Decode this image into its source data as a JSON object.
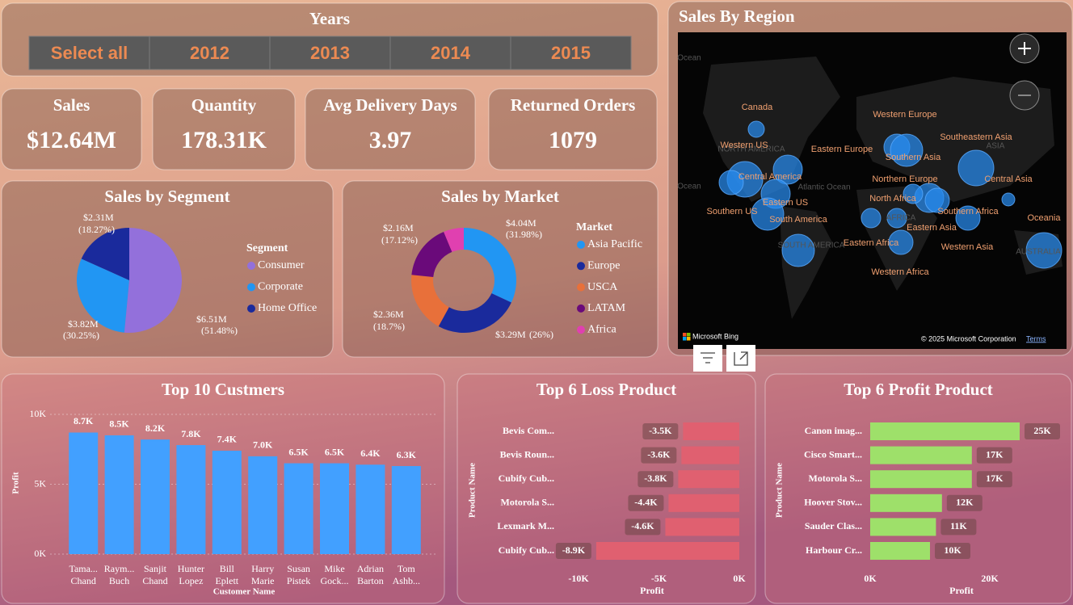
{
  "slicer": {
    "title": "Years",
    "options": [
      "Select all",
      "2012",
      "2013",
      "2014",
      "2015"
    ]
  },
  "cards": [
    {
      "label": "Sales",
      "value": "$12.64M"
    },
    {
      "label": "Quantity",
      "value": "178.31K"
    },
    {
      "label": "Avg Delivery Days",
      "value": "3.97"
    },
    {
      "label": "Returned Orders",
      "value": "1079"
    }
  ],
  "map": {
    "title": "Sales By Region",
    "regions": [
      "Canada",
      "Western Europe",
      "Southeastern Asia",
      "Western US",
      "Eastern Europe",
      "Southern Asia",
      "Central America",
      "Northern Europe",
      "Central Asia",
      "Eastern US",
      "North Africa",
      "Southern US",
      "Southern Africa",
      "South America",
      "Oceania",
      "Eastern Asia",
      "Eastern Africa",
      "Western Asia",
      "Western Africa"
    ],
    "base_labels": [
      "Ocean",
      "Ocean",
      "NORTH AMERICA",
      "Atlantic Ocean",
      "ASIA",
      "AFRICA",
      "SOUTH AMERICA",
      "AUSTRALIA"
    ],
    "attribution": "Microsoft Bing",
    "copyright": "© 2025 Microsoft Corporation",
    "terms": "Terms"
  },
  "chart_data": [
    {
      "type": "pie",
      "title": "Sales by Segment",
      "legend_title": "Segment",
      "categories": [
        "Consumer",
        "Corporate",
        "Home Office"
      ],
      "values": [
        6510000,
        3820000,
        2310000
      ],
      "value_labels": [
        "$6.51M",
        "$3.82M",
        "$2.31M"
      ],
      "percentages": [
        51.48,
        30.25,
        18.27
      ],
      "percentage_labels": [
        "(51.48%)",
        "(30.25%)",
        "(18.27%)"
      ],
      "colors": [
        "#9370db",
        "#2196f3",
        "#1a2a9c"
      ]
    },
    {
      "type": "donut",
      "title": "Sales by Market",
      "legend_title": "Market",
      "categories": [
        "Asia Pacific",
        "Europe",
        "USCA",
        "LATAM",
        "Africa"
      ],
      "values": [
        4040000,
        3290000,
        2360000,
        2160000,
        790000
      ],
      "value_labels": [
        "$4.04M",
        "$3.29M",
        "$2.36M",
        "$2.16M",
        null
      ],
      "percentages": [
        31.98,
        26,
        18.7,
        17.12,
        6.2
      ],
      "percentage_labels": [
        "(31.98%)",
        "(26%)",
        "(18.7%)",
        "(17.12%)",
        null
      ],
      "colors": [
        "#2196f3",
        "#1a2a9c",
        "#e8703a",
        "#6a0a7a",
        "#e040b0"
      ]
    },
    {
      "type": "bar",
      "title": "Top 10 Custmers",
      "x_label": "Customer Name",
      "y_label": "Profit",
      "categories": [
        [
          "Tama...",
          "Chand"
        ],
        [
          "Raym...",
          "Buch"
        ],
        [
          "Sanjit",
          "Chand"
        ],
        [
          "Hunter",
          "Lopez"
        ],
        [
          "Bill",
          "Eplett"
        ],
        [
          "Harry",
          "Marie"
        ],
        [
          "Susan",
          "Pistek"
        ],
        [
          "Mike",
          "Gock..."
        ],
        [
          "Adrian",
          "Barton"
        ],
        [
          "Tom",
          "Ashb..."
        ]
      ],
      "values": [
        8700,
        8500,
        8200,
        7800,
        7400,
        7000,
        6500,
        6500,
        6400,
        6300
      ],
      "value_labels": [
        "8.7K",
        "8.5K",
        "8.2K",
        "7.8K",
        "7.4K",
        "7.0K",
        "6.5K",
        "6.5K",
        "6.4K",
        "6.3K"
      ],
      "color": "#42a0ff",
      "ylim": [
        0,
        10000
      ],
      "yticks": [
        {
          "value": 0,
          "label": "0K"
        },
        {
          "value": 5000,
          "label": "5K"
        },
        {
          "value": 10000,
          "label": "10K"
        }
      ],
      "grid": true
    },
    {
      "type": "hbar",
      "title": "Top 6 Loss Product",
      "x_label": "Profit",
      "y_label": "Product Name",
      "categories": [
        "Bevis Com...",
        "Bevis Roun...",
        "Cubify Cub...",
        "Motorola S...",
        "Lexmark M...",
        "Cubify Cub..."
      ],
      "values": [
        -3500,
        -3600,
        -3800,
        -4400,
        -4600,
        -8900
      ],
      "value_labels": [
        "-3.5K",
        "-3.6K",
        "-3.8K",
        "-4.4K",
        "-4.6K",
        "-8.9K"
      ],
      "color": "#e06070",
      "xlim": [
        -10000,
        0
      ],
      "xticks": [
        {
          "value": -10000,
          "label": "-10K"
        },
        {
          "value": -5000,
          "label": "-5K"
        },
        {
          "value": 0,
          "label": "0K"
        }
      ],
      "grid": false
    },
    {
      "type": "hbar",
      "title": "Top 6 Profit Product",
      "x_label": "Profit",
      "y_label": "Product Name",
      "categories": [
        "Canon imag...",
        "Cisco Smart...",
        "Motorola S...",
        "Hoover Stov...",
        "Sauder Clas...",
        "Harbour Cr..."
      ],
      "values": [
        25000,
        17000,
        17000,
        12000,
        11000,
        10000
      ],
      "value_labels": [
        "25K",
        "17K",
        "17K",
        "12K",
        "11K",
        "10K"
      ],
      "color": "#9ee06a",
      "xlim": [
        0,
        25000
      ],
      "xticks": [
        {
          "value": 0,
          "label": "0K"
        },
        {
          "value": 20000,
          "label": "20K"
        }
      ],
      "grid": false
    }
  ]
}
